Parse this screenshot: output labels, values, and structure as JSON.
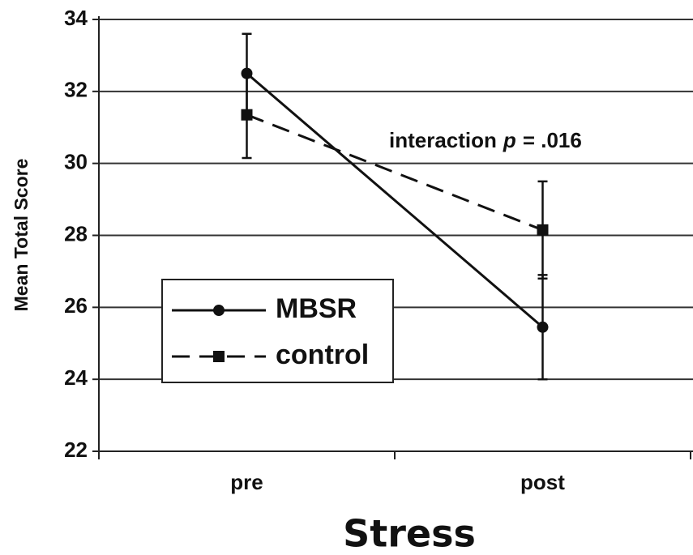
{
  "chart_data": {
    "type": "line",
    "x_label": "Stress",
    "y_label": "Mean Total Score",
    "annotation": [
      "interaction",
      "p",
      "= .016"
    ],
    "categories": [
      "pre",
      "post"
    ],
    "series": [
      {
        "name": "MBSR",
        "color": "#111111",
        "dash": false,
        "marker": "circle",
        "values": [
          32.5,
          25.45
        ],
        "errors": [
          1.1,
          1.45
        ]
      },
      {
        "name": "control",
        "color": "#111111",
        "dash": true,
        "marker": "square",
        "values": [
          31.35,
          28.15
        ],
        "errors": [
          1.2,
          1.35
        ]
      }
    ],
    "ylim": [
      22,
      34
    ],
    "yticks": [
      22,
      24,
      26,
      28,
      30,
      32,
      34
    ],
    "grid": true,
    "legend": "lower left"
  }
}
